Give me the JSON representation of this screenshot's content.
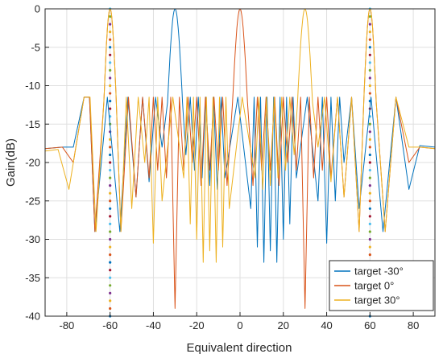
{
  "chart_data": {
    "type": "line",
    "xlabel": "Equivalent direction",
    "ylabel": "Gain(dB)",
    "xlim": [
      -90,
      90
    ],
    "ylim": [
      -40,
      0
    ],
    "xticks": [
      -80,
      -60,
      -40,
      -20,
      0,
      20,
      40,
      60,
      80
    ],
    "yticks": [
      0,
      -5,
      -10,
      -15,
      -20,
      -25,
      -30,
      -35,
      -40
    ],
    "grid": true,
    "legend_position": "bottom-right",
    "series": [
      {
        "name": "target -30°",
        "color": "#0072bd",
        "sidelobe_level": -11.5,
        "main_lobe": {
          "center": -30,
          "width": 3.6,
          "base": -13
        },
        "grating_lobe": {
          "center": 30,
          "width": 3.6,
          "base": -13,
          "present": false
        },
        "edges": {
          "y_at_minus_90": -18.2,
          "y_at_90": -18.0,
          "dip_left": {
            "x": -77,
            "y": -18.0
          },
          "dip_right": {
            "x": 78,
            "y": -23.5
          }
        },
        "nulls": [
          {
            "x": -67,
            "y": -29
          },
          {
            "x": -55.5,
            "y": -29
          },
          {
            "x": -48,
            "y": -24.5
          },
          {
            "x": -42,
            "y": -22.5
          },
          {
            "x": -36,
            "y": -18
          },
          {
            "x": -25,
            "y": -19
          },
          {
            "x": -21,
            "y": -21
          },
          {
            "x": -17.5,
            "y": -22
          },
          {
            "x": -14,
            "y": -23
          },
          {
            "x": -10.5,
            "y": -23.5
          },
          {
            "x": -7,
            "y": -22
          },
          {
            "x": 5,
            "y": -26
          },
          {
            "x": 8,
            "y": -31
          },
          {
            "x": 11,
            "y": -33
          },
          {
            "x": 14,
            "y": -31.5
          },
          {
            "x": 17,
            "y": -33
          },
          {
            "x": 20,
            "y": -30
          },
          {
            "x": 23,
            "y": -28
          },
          {
            "x": 26,
            "y": -22
          },
          {
            "x": 36,
            "y": -25
          },
          {
            "x": 40,
            "y": -30.5
          },
          {
            "x": 44,
            "y": -25
          },
          {
            "x": 48,
            "y": -20
          },
          {
            "x": 55,
            "y": -26
          },
          {
            "x": 66,
            "y": -29
          }
        ]
      },
      {
        "name": "target 0°",
        "color": "#d95319",
        "sidelobe_level": -11.5,
        "main_lobe": {
          "center": 0,
          "width": 3.6,
          "base": -13
        },
        "grating_lobe": {
          "center": -60,
          "width": 3.0,
          "base": -13,
          "present": true
        },
        "grating_lobe_2": {
          "center": 60,
          "width": 3.0,
          "base": -13,
          "present": true
        },
        "edges": {
          "y_at_minus_90": -18.2,
          "y_at_90": -18.2,
          "dip_left": {
            "x": -77,
            "y": -20
          },
          "dip_right": {
            "x": 78,
            "y": -20
          }
        },
        "nulls": [
          {
            "x": -67,
            "y": -29
          },
          {
            "x": -55,
            "y": -29
          },
          {
            "x": -48,
            "y": -24.5
          },
          {
            "x": -42,
            "y": -22
          },
          {
            "x": -38,
            "y": -21
          },
          {
            "x": -34,
            "y": -22
          },
          {
            "x": -30,
            "y": -39
          },
          {
            "x": -26,
            "y": -21
          },
          {
            "x": -22,
            "y": -20
          },
          {
            "x": -18,
            "y": -23
          },
          {
            "x": -14,
            "y": -21
          },
          {
            "x": -10,
            "y": -21
          },
          {
            "x": -6,
            "y": -23
          },
          {
            "x": 6,
            "y": -23
          },
          {
            "x": 10,
            "y": -21
          },
          {
            "x": 14,
            "y": -21
          },
          {
            "x": 18,
            "y": -23
          },
          {
            "x": 22,
            "y": -20
          },
          {
            "x": 26,
            "y": -21
          },
          {
            "x": 30,
            "y": -39
          },
          {
            "x": 34,
            "y": -22
          },
          {
            "x": 38,
            "y": -21
          },
          {
            "x": 42,
            "y": -22
          },
          {
            "x": 48,
            "y": -24.5
          },
          {
            "x": 55,
            "y": -29
          },
          {
            "x": 67,
            "y": -29
          }
        ]
      },
      {
        "name": "target 30°",
        "color": "#edb120",
        "sidelobe_level": -11.5,
        "main_lobe": {
          "center": 30,
          "width": 3.6,
          "base": -13
        },
        "grating_lobe": {
          "center": -60,
          "width": 3.0,
          "base": -13,
          "present": true
        },
        "grating_lobe_2": {
          "center": 60,
          "width": 3.0,
          "base": -13,
          "present": true
        },
        "edges": {
          "y_at_minus_90": -18.5,
          "y_at_90": -18.2,
          "dip_left": {
            "x": -79,
            "y": -23.5
          },
          "dip_right": {
            "x": 78,
            "y": -18
          }
        },
        "nulls": [
          {
            "x": -66.5,
            "y": -29
          },
          {
            "x": -55,
            "y": -29
          },
          {
            "x": -50,
            "y": -26
          },
          {
            "x": -44,
            "y": -20
          },
          {
            "x": -40,
            "y": -30.5
          },
          {
            "x": -36,
            "y": -25
          },
          {
            "x": -26,
            "y": -22
          },
          {
            "x": -23,
            "y": -28
          },
          {
            "x": -20,
            "y": -30
          },
          {
            "x": -17,
            "y": -33
          },
          {
            "x": -14,
            "y": -31.5
          },
          {
            "x": -11,
            "y": -33
          },
          {
            "x": -8,
            "y": -31
          },
          {
            "x": -5,
            "y": -26
          },
          {
            "x": 7,
            "y": -22
          },
          {
            "x": 10.5,
            "y": -23.5
          },
          {
            "x": 14,
            "y": -23
          },
          {
            "x": 17.5,
            "y": -22
          },
          {
            "x": 21,
            "y": -21
          },
          {
            "x": 25,
            "y": -19
          },
          {
            "x": 36,
            "y": -18
          },
          {
            "x": 42,
            "y": -22.5
          },
          {
            "x": 48,
            "y": -24.5
          },
          {
            "x": 55,
            "y": -29
          },
          {
            "x": 67,
            "y": -29
          }
        ]
      }
    ],
    "marker_lines": [
      {
        "x": -60,
        "from": -40,
        "to": 0,
        "colors": [
          "#0072bd",
          "#d95319",
          "#edb120",
          "#7e2f8e",
          "#77ac30",
          "#4dbeee",
          "#a2142f"
        ]
      },
      {
        "x": 60,
        "from": -40,
        "to": 0,
        "colors": [
          "#0072bd",
          "#d95319",
          "#edb120",
          "#7e2f8e",
          "#77ac30",
          "#4dbeee",
          "#a2142f"
        ]
      }
    ]
  }
}
